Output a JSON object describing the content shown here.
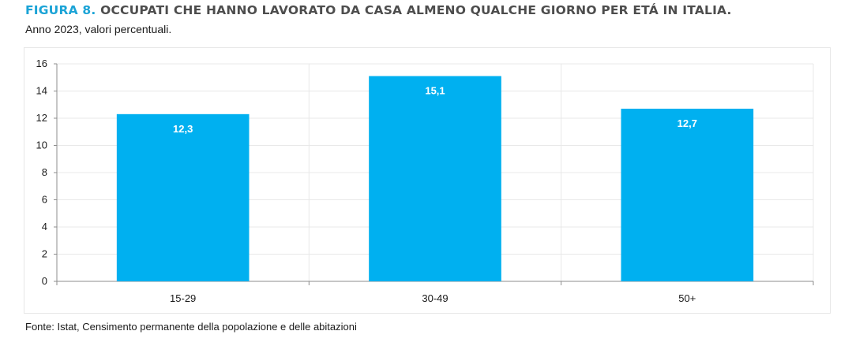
{
  "figure_label": "FIGURA 8.",
  "title": "OCCUPATI CHE HANNO LAVORATO DA CASA ALMENO QUALCHE GIORNO PER ETÁ IN ITALIA.",
  "subtitle": "Anno 2023, valori percentuali.",
  "source": "Fonte: Istat, Censimento permanente della popolazione e delle abitazioni",
  "colors": {
    "bar": "#00b0f0",
    "grid": "#e8e8e8",
    "axis": "#8c8c8c",
    "accent": "#1aa3d6"
  },
  "chart_data": {
    "type": "bar",
    "categories": [
      "15-29",
      "30-49",
      "50+"
    ],
    "values": [
      12.3,
      15.1,
      12.7
    ],
    "value_labels": [
      "12,3",
      "15,1",
      "12,7"
    ],
    "yticks": [
      0,
      2,
      4,
      6,
      8,
      10,
      12,
      14,
      16
    ],
    "ylim": [
      0,
      16
    ],
    "grid": true,
    "legend": "none"
  }
}
